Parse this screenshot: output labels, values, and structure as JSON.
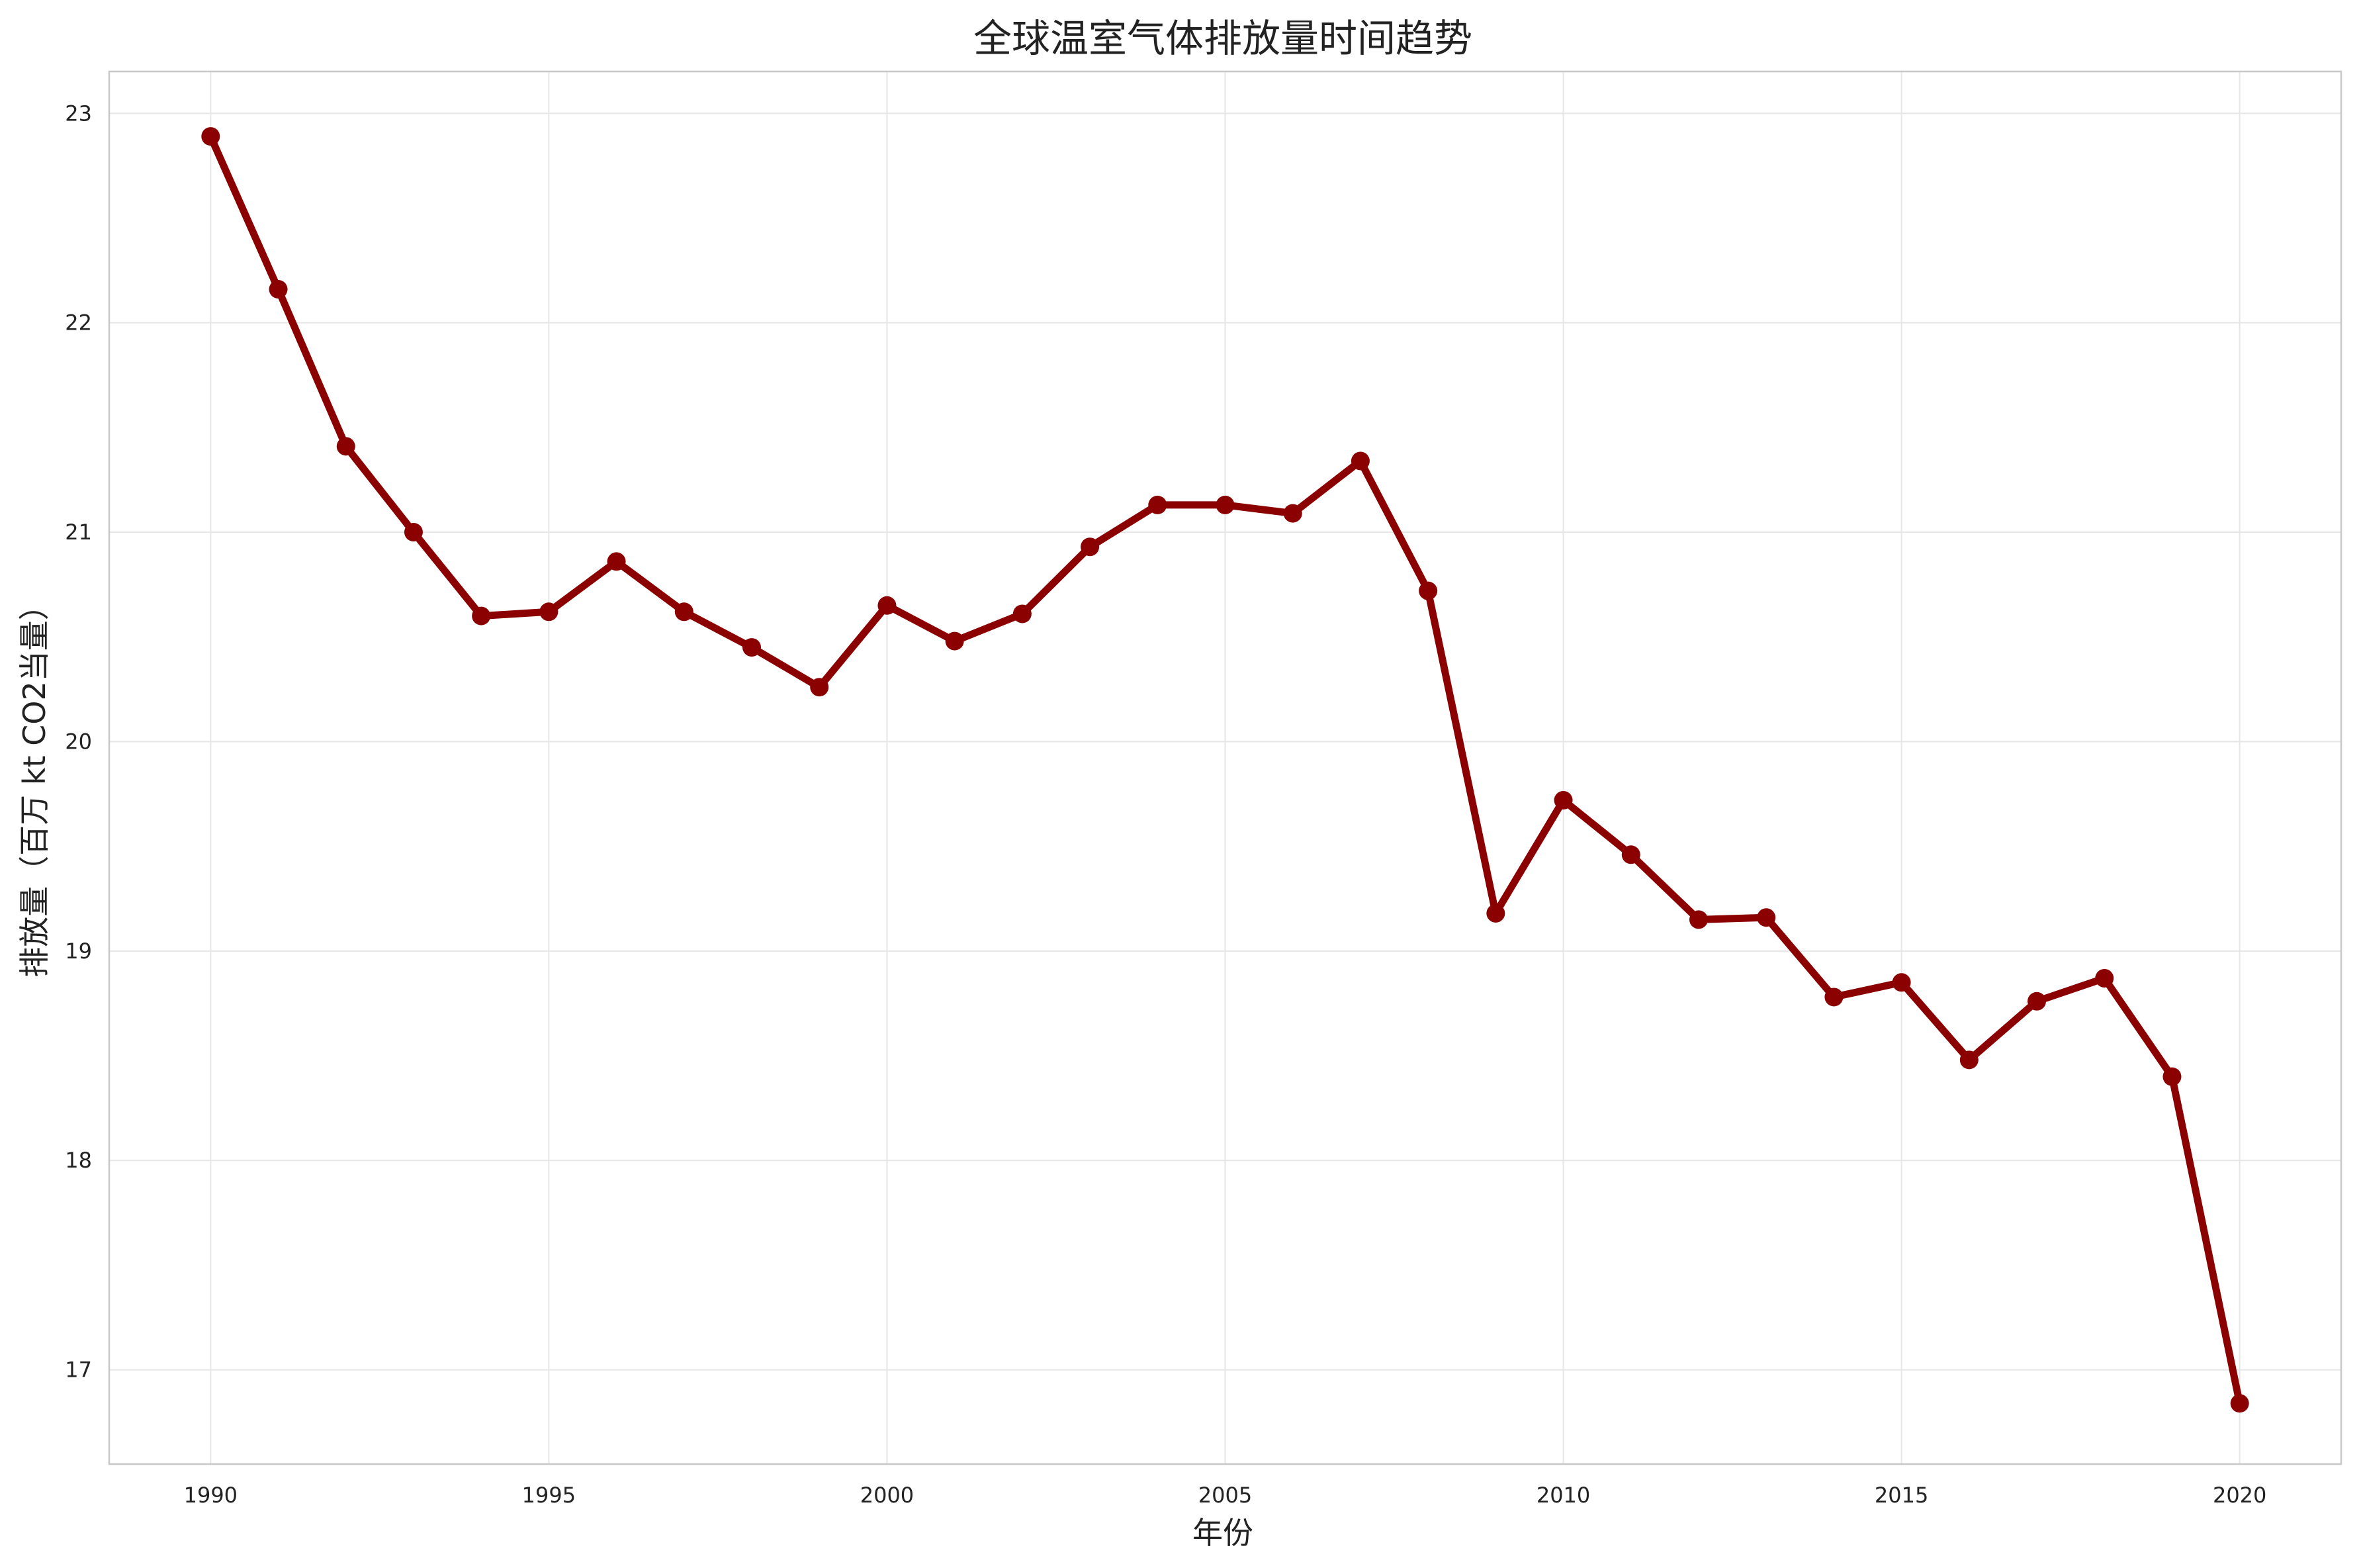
{
  "chart_data": {
    "type": "line",
    "title": "全球温室气体排放量时间趋势",
    "xlabel": "年份",
    "ylabel": "排放量（百万 kt CO2当量）",
    "xlim": [
      1988.5,
      2021.5
    ],
    "ylim": [
      16.55,
      23.2
    ],
    "xticks": [
      1990,
      1995,
      2000,
      2005,
      2010,
      2015,
      2020
    ],
    "yticks": [
      17,
      18,
      19,
      20,
      21,
      22,
      23
    ],
    "grid": true,
    "legend": "none",
    "color": "#8b0000",
    "x": [
      1990,
      1991,
      1992,
      1993,
      1994,
      1995,
      1996,
      1997,
      1998,
      1999,
      2000,
      2001,
      2002,
      2003,
      2004,
      2005,
      2006,
      2007,
      2008,
      2009,
      2010,
      2011,
      2012,
      2013,
      2014,
      2015,
      2016,
      2017,
      2018,
      2019,
      2020
    ],
    "series": [
      {
        "values": [
          22.89,
          22.16,
          21.41,
          21.0,
          20.6,
          20.62,
          20.86,
          20.62,
          20.45,
          20.26,
          20.65,
          20.48,
          20.61,
          20.93,
          21.13,
          21.13,
          21.09,
          21.34,
          20.72,
          19.18,
          19.72,
          19.46,
          19.15,
          19.16,
          18.78,
          18.85,
          18.48,
          18.76,
          18.87,
          18.4,
          16.84
        ]
      }
    ]
  }
}
